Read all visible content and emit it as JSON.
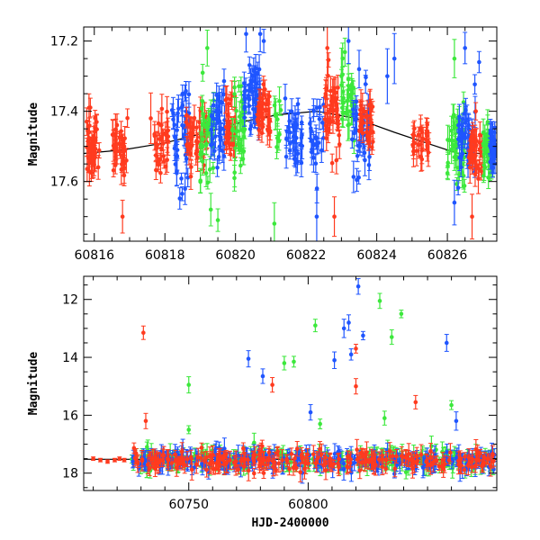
{
  "chart_data": [
    {
      "type": "scatter",
      "panel": "top",
      "xlabel": "",
      "ylabel": "Magnitude",
      "xlim": [
        60815.7,
        60827.4
      ],
      "ylim": [
        17.77,
        17.16
      ],
      "y_inverted": true,
      "xticks": [
        60816,
        60818,
        60820,
        60822,
        60824,
        60826
      ],
      "yticks": [
        17.2,
        17.4,
        17.6
      ],
      "ytick_labels": [
        "17.2",
        "17.4",
        "17.6"
      ],
      "series_colors": {
        "red": "#ff3b1f",
        "blue": "#1f55ff",
        "green": "#3ce83c"
      },
      "model_curve": {
        "color": "#000000",
        "x": [
          60815.7,
          60816.8,
          60818,
          60819.2,
          60820.2,
          60821.2,
          60822.3,
          60823.4,
          60824.5,
          60825.4,
          60826.3,
          60827.4
        ],
        "y": [
          17.52,
          17.51,
          17.49,
          17.46,
          17.43,
          17.41,
          17.4,
          17.42,
          17.46,
          17.49,
          17.52,
          17.52
        ]
      },
      "clusters": [
        {
          "color": "red",
          "x": [
            60815.75,
            60816.15
          ],
          "mean": 17.51,
          "spread": 0.05,
          "n": 40
        },
        {
          "color": "red",
          "x": [
            60816.5,
            60816.95
          ],
          "mean": 17.51,
          "spread": 0.04,
          "n": 35
        },
        {
          "color": "red",
          "x": [
            60817.7,
            60818.1
          ],
          "mean": 17.49,
          "spread": 0.04,
          "n": 30
        },
        {
          "color": "blue",
          "x": [
            60818.2,
            60818.7
          ],
          "mean": 17.47,
          "spread": 0.07,
          "n": 40
        },
        {
          "color": "red",
          "x": [
            60818.6,
            60819.2
          ],
          "mean": 17.48,
          "spread": 0.04,
          "n": 45
        },
        {
          "color": "green",
          "x": [
            60819.0,
            60819.4
          ],
          "mean": 17.46,
          "spread": 0.07,
          "n": 35
        },
        {
          "color": "blue",
          "x": [
            60819.3,
            60819.7
          ],
          "mean": 17.44,
          "spread": 0.06,
          "n": 35
        },
        {
          "color": "red",
          "x": [
            60819.7,
            60820.0
          ],
          "mean": 17.44,
          "spread": 0.04,
          "n": 30
        },
        {
          "color": "green",
          "x": [
            60819.9,
            60820.3
          ],
          "mean": 17.43,
          "spread": 0.06,
          "n": 35
        },
        {
          "color": "blue",
          "x": [
            60820.2,
            60820.7
          ],
          "mean": 17.36,
          "spread": 0.05,
          "n": 45
        },
        {
          "color": "red",
          "x": [
            60820.6,
            60821.0
          ],
          "mean": 17.4,
          "spread": 0.04,
          "n": 40
        },
        {
          "color": "green",
          "x": [
            60821.1,
            60821.3
          ],
          "mean": 17.42,
          "spread": 0.04,
          "n": 10
        },
        {
          "color": "blue",
          "x": [
            60821.4,
            60821.9
          ],
          "mean": 17.47,
          "spread": 0.05,
          "n": 35
        },
        {
          "color": "blue",
          "x": [
            60822.1,
            60822.5
          ],
          "mean": 17.47,
          "spread": 0.06,
          "n": 25
        },
        {
          "color": "red",
          "x": [
            60822.5,
            60822.95
          ],
          "mean": 17.38,
          "spread": 0.06,
          "n": 45
        },
        {
          "color": "green",
          "x": [
            60823.0,
            60823.4
          ],
          "mean": 17.35,
          "spread": 0.07,
          "n": 30
        },
        {
          "color": "blue",
          "x": [
            60823.3,
            60823.8
          ],
          "mean": 17.45,
          "spread": 0.07,
          "n": 35
        },
        {
          "color": "red",
          "x": [
            60823.5,
            60823.9
          ],
          "mean": 17.44,
          "spread": 0.04,
          "n": 30
        },
        {
          "color": "red",
          "x": [
            60825.0,
            60825.5
          ],
          "mean": 17.49,
          "spread": 0.03,
          "n": 30
        },
        {
          "color": "green",
          "x": [
            60826.0,
            60826.5
          ],
          "mean": 17.5,
          "spread": 0.06,
          "n": 40
        },
        {
          "color": "blue",
          "x": [
            60826.3,
            60826.8
          ],
          "mean": 17.49,
          "spread": 0.06,
          "n": 40
        },
        {
          "color": "red",
          "x": [
            60826.6,
            60827.0
          ],
          "mean": 17.51,
          "spread": 0.04,
          "n": 40
        },
        {
          "color": "green",
          "x": [
            60827.0,
            60827.3
          ],
          "mean": 17.51,
          "spread": 0.06,
          "n": 30
        },
        {
          "color": "blue",
          "x": [
            60827.2,
            60827.4
          ],
          "mean": 17.52,
          "spread": 0.05,
          "n": 20
        }
      ],
      "notable_points": [
        {
          "color": "red",
          "x": 60816.8,
          "y": 17.7
        },
        {
          "color": "red",
          "x": 60817.6,
          "y": 17.42
        },
        {
          "color": "red",
          "x": 60815.85,
          "y": 17.39
        },
        {
          "color": "green",
          "x": 60819.2,
          "y": 17.22
        },
        {
          "color": "green",
          "x": 60819.3,
          "y": 17.68
        },
        {
          "color": "green",
          "x": 60819.5,
          "y": 17.71
        },
        {
          "color": "blue",
          "x": 60820.3,
          "y": 17.18
        },
        {
          "color": "blue",
          "x": 60820.7,
          "y": 17.18
        },
        {
          "color": "blue",
          "x": 60820.8,
          "y": 17.2
        },
        {
          "color": "green",
          "x": 60821.1,
          "y": 17.72
        },
        {
          "color": "blue",
          "x": 60822.3,
          "y": 17.7
        },
        {
          "color": "red",
          "x": 60822.6,
          "y": 17.22
        },
        {
          "color": "red",
          "x": 60822.8,
          "y": 17.7
        },
        {
          "color": "green",
          "x": 60823.0,
          "y": 17.3
        },
        {
          "color": "blue",
          "x": 60823.2,
          "y": 17.2
        },
        {
          "color": "blue",
          "x": 60823.5,
          "y": 17.28
        },
        {
          "color": "blue",
          "x": 60824.3,
          "y": 17.3
        },
        {
          "color": "blue",
          "x": 60824.5,
          "y": 17.25
        },
        {
          "color": "green",
          "x": 60826.2,
          "y": 17.25
        },
        {
          "color": "blue",
          "x": 60826.5,
          "y": 17.22
        },
        {
          "color": "blue",
          "x": 60826.9,
          "y": 17.26
        },
        {
          "color": "blue",
          "x": 60826.2,
          "y": 17.66
        },
        {
          "color": "red",
          "x": 60826.7,
          "y": 17.7
        }
      ]
    },
    {
      "type": "scatter",
      "panel": "bottom",
      "xlabel": "HJD-2400000",
      "ylabel": "Magnitude",
      "xlim": [
        60706,
        60879
      ],
      "ylim": [
        18.6,
        11.2
      ],
      "y_inverted": true,
      "xticks": [
        60750,
        60800
      ],
      "yticks": [
        12,
        14,
        16,
        18
      ],
      "series_colors": {
        "red": "#ff3b1f",
        "blue": "#1f55ff",
        "green": "#3ce83c"
      },
      "model_curve": {
        "color": "#000000",
        "x": [
          60706,
          60879
        ],
        "y": [
          17.52,
          17.52
        ]
      },
      "baseline_band": {
        "x_start": 60726,
        "x_end": 60878,
        "mean": 17.55,
        "spread": 0.16
      },
      "early_red_points": [
        {
          "x": 60710,
          "y": 17.5
        },
        {
          "x": 60713,
          "y": 17.55
        },
        {
          "x": 60716,
          "y": 17.6
        },
        {
          "x": 60719,
          "y": 17.55
        },
        {
          "x": 60721,
          "y": 17.5
        },
        {
          "x": 60723,
          "y": 17.55
        }
      ],
      "outliers": [
        {
          "color": "red",
          "x": 60731,
          "y": 13.15
        },
        {
          "color": "red",
          "x": 60732,
          "y": 16.2
        },
        {
          "color": "green",
          "x": 60750,
          "y": 14.95
        },
        {
          "color": "green",
          "x": 60750,
          "y": 16.5
        },
        {
          "color": "blue",
          "x": 60775,
          "y": 14.05
        },
        {
          "color": "blue",
          "x": 60781,
          "y": 14.65
        },
        {
          "color": "red",
          "x": 60785,
          "y": 14.95
        },
        {
          "color": "green",
          "x": 60790,
          "y": 14.2
        },
        {
          "color": "green",
          "x": 60794,
          "y": 14.15
        },
        {
          "color": "blue",
          "x": 60801,
          "y": 15.9
        },
        {
          "color": "green",
          "x": 60803,
          "y": 12.9
        },
        {
          "color": "green",
          "x": 60805,
          "y": 16.3
        },
        {
          "color": "blue",
          "x": 60811,
          "y": 14.1
        },
        {
          "color": "blue",
          "x": 60815,
          "y": 13.0
        },
        {
          "color": "blue",
          "x": 60817,
          "y": 12.8
        },
        {
          "color": "blue",
          "x": 60818,
          "y": 13.9
        },
        {
          "color": "blue",
          "x": 60821,
          "y": 11.55
        },
        {
          "color": "red",
          "x": 60820,
          "y": 13.7
        },
        {
          "color": "red",
          "x": 60820,
          "y": 15.0
        },
        {
          "color": "blue",
          "x": 60823,
          "y": 13.25
        },
        {
          "color": "green",
          "x": 60830,
          "y": 12.05
        },
        {
          "color": "green",
          "x": 60832,
          "y": 16.1
        },
        {
          "color": "green",
          "x": 60835,
          "y": 13.3
        },
        {
          "color": "green",
          "x": 60839,
          "y": 12.5
        },
        {
          "color": "red",
          "x": 60845,
          "y": 15.55
        },
        {
          "color": "blue",
          "x": 60858,
          "y": 13.5
        },
        {
          "color": "green",
          "x": 60860,
          "y": 15.65
        },
        {
          "color": "blue",
          "x": 60862,
          "y": 16.2
        }
      ]
    }
  ]
}
